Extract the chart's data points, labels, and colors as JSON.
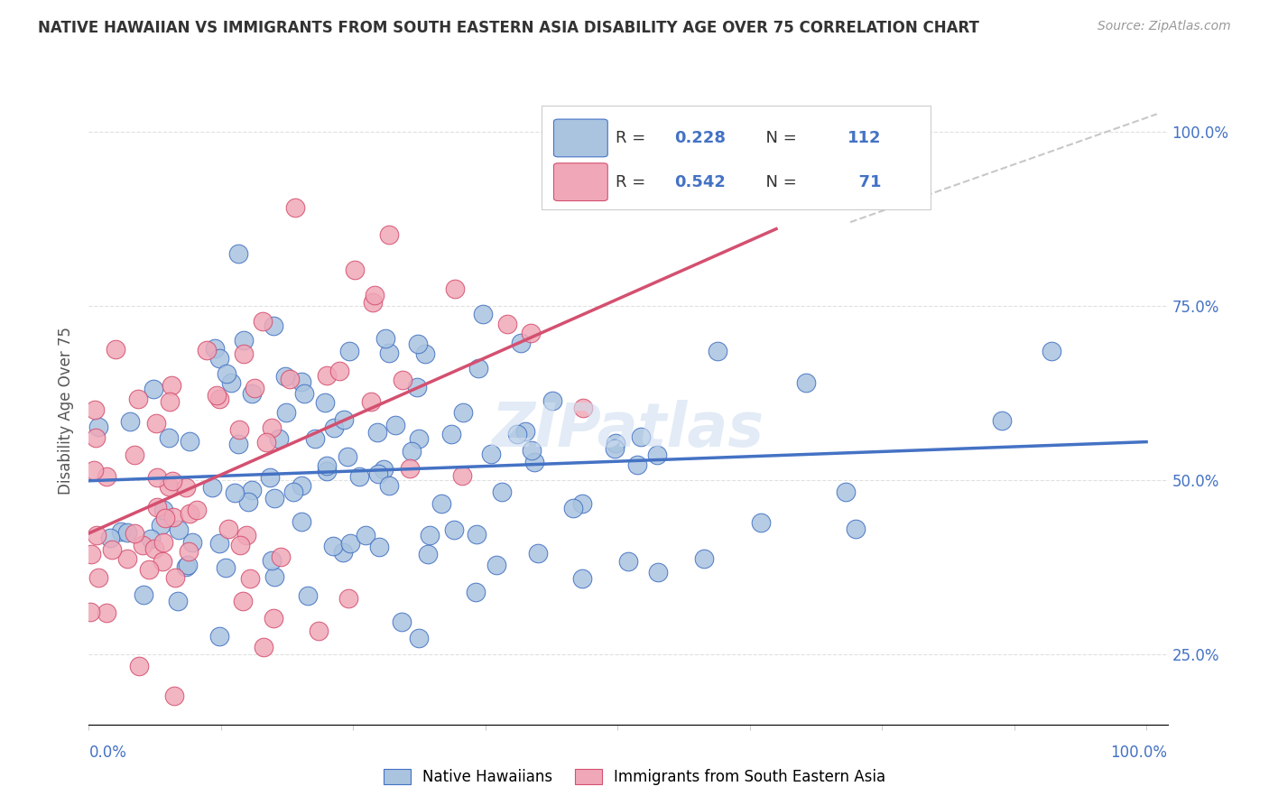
{
  "title": "NATIVE HAWAIIAN VS IMMIGRANTS FROM SOUTH EASTERN ASIA DISABILITY AGE OVER 75 CORRELATION CHART",
  "source": "Source: ZipAtlas.com",
  "ylabel": "Disability Age Over 75",
  "legend_label_1": "Native Hawaiians",
  "legend_label_2": "Immigrants from South Eastern Asia",
  "R1": 0.228,
  "N1": 112,
  "R2": 0.542,
  "N2": 71,
  "color_blue": "#aac4e0",
  "color_pink": "#f0a8b8",
  "color_blue_text": "#4472c4",
  "line_blue": "#4472c4",
  "line_pink": "#d45070",
  "line_dashed_color": "#c8c8c8",
  "background_color": "#ffffff",
  "grid_color": "#e0e0e0",
  "watermark_color": "#d0dff0",
  "seed_blue": 42,
  "seed_pink": 7
}
